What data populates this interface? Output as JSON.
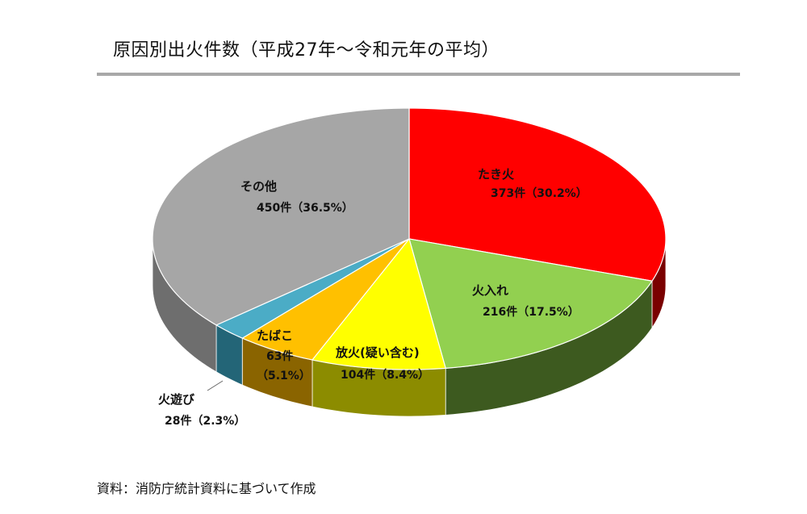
{
  "page": {
    "title": "原因別出火件数（平成27年〜令和元年の平均）",
    "source": "資料：消防庁統計資料に基づいて作成"
  },
  "chart_data": {
    "type": "pie",
    "title": "原因別出火件数（平成27年〜令和元年の平均）",
    "slices": [
      {
        "name": "たき火",
        "value": 373,
        "percent": 30.2,
        "color": "#ff0000",
        "side_color": "#7a0000",
        "value_label": "373件（30.2%）"
      },
      {
        "name": "火入れ",
        "value": 216,
        "percent": 17.5,
        "color": "#92d050",
        "side_color": "#3d5a1f",
        "value_label": "216件（17.5%）"
      },
      {
        "name": "放火(疑い含む)",
        "value": 104,
        "percent": 8.4,
        "color": "#ffff00",
        "side_color": "#8c8c00",
        "value_label": "104件（8.4%）"
      },
      {
        "name": "たばこ",
        "value": 63,
        "percent": 5.1,
        "color": "#ffc000",
        "side_color": "#8a6400",
        "value_label_line1": "63件",
        "value_label_line2": "（5.1%）"
      },
      {
        "name": "火遊び",
        "value": 28,
        "percent": 2.3,
        "color": "#4bacc6",
        "side_color": "#236577",
        "value_label": "28件（2.3%）"
      },
      {
        "name": "その他",
        "value": 450,
        "percent": 36.5,
        "color": "#a6a6a6",
        "side_color": "#6e6e6e",
        "value_label": "450件（36.5%）"
      }
    ],
    "start": "12 o'clock",
    "direction": "clockwise",
    "style": "3d"
  }
}
